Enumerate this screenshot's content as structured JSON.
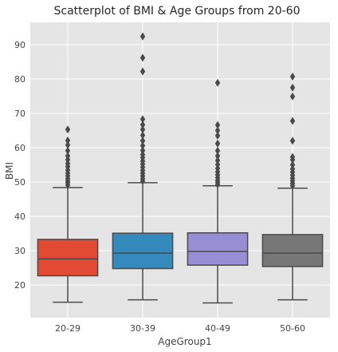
{
  "chart_data": {
    "type": "box",
    "title": "Scatterplot of BMI & Age Groups from 20-60",
    "xlabel": "AgeGroup1",
    "ylabel": "BMI",
    "categories": [
      "20-29",
      "30-39",
      "40-49",
      "50-60"
    ],
    "ylim": [
      10.5,
      96.5
    ],
    "yticks": [
      20,
      30,
      40,
      50,
      60,
      70,
      80,
      90
    ],
    "grid": true,
    "colors": [
      "#E24A33",
      "#348ABD",
      "#988ED5",
      "#777777"
    ],
    "boxes": [
      {
        "category": "20-29",
        "whisker_low": 15.0,
        "q1": 22.7,
        "median": 27.6,
        "q3": 33.3,
        "whisker_high": 48.4,
        "outliers": [
          49.1,
          49.8,
          50.3,
          51.0,
          51.8,
          52.6,
          53.5,
          54.5,
          55.4,
          56.5,
          57.6,
          59.1,
          60.8,
          62.1,
          65.3
        ]
      },
      {
        "category": "30-39",
        "whisker_low": 15.7,
        "q1": 24.8,
        "median": 29.3,
        "q3": 35.1,
        "whisker_high": 49.8,
        "outliers": [
          50.3,
          51.0,
          51.8,
          52.6,
          53.4,
          54.3,
          55.2,
          56.1,
          57.1,
          58.0,
          59.2,
          60.6,
          62.0,
          63.6,
          65.3,
          66.7,
          68.3,
          82.2,
          86.2,
          92.4
        ]
      },
      {
        "category": "40-49",
        "whisker_low": 14.8,
        "q1": 25.8,
        "median": 29.8,
        "q3": 35.2,
        "whisker_high": 48.9,
        "outliers": [
          49.3,
          49.9,
          50.5,
          51.3,
          52.1,
          53.0,
          54.0,
          55.1,
          56.3,
          57.6,
          59.1,
          61.2,
          63.5,
          65.0,
          66.6,
          78.9
        ]
      },
      {
        "category": "50-60",
        "whisker_low": 15.7,
        "q1": 25.4,
        "median": 29.3,
        "q3": 34.7,
        "whisker_high": 48.2,
        "outliers": [
          48.9,
          49.6,
          50.3,
          51.1,
          52.0,
          52.9,
          53.8,
          55.0,
          56.5,
          57.3,
          62.0,
          67.8,
          74.9,
          77.5,
          80.7
        ]
      }
    ]
  }
}
